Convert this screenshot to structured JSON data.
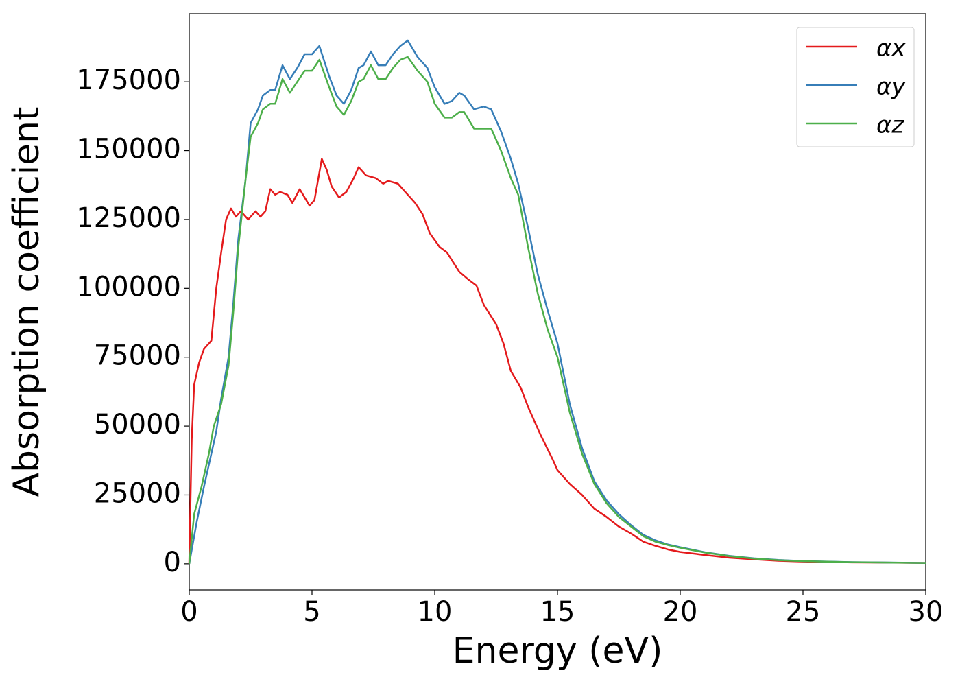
{
  "chart_data": {
    "type": "line",
    "xlabel": "Energy (eV)",
    "ylabel": "Absorption coefficient",
    "xlim": [
      0,
      30
    ],
    "ylim": [
      -9500,
      199700
    ],
    "xticks": [
      0,
      5,
      10,
      15,
      20,
      25,
      30
    ],
    "yticks": [
      0,
      25000,
      50000,
      75000,
      100000,
      125000,
      150000,
      175000
    ],
    "grid": false,
    "legend": "upper right",
    "series": [
      {
        "name": "αx",
        "color": "#e41a1c",
        "x": [
          0,
          0.1,
          0.2,
          0.4,
          0.6,
          0.9,
          1.1,
          1.3,
          1.5,
          1.7,
          1.9,
          2.1,
          2.4,
          2.7,
          2.9,
          3.1,
          3.3,
          3.5,
          3.7,
          4.0,
          4.2,
          4.5,
          4.9,
          5.1,
          5.4,
          5.6,
          5.8,
          6.1,
          6.4,
          6.7,
          6.9,
          7.2,
          7.6,
          7.9,
          8.1,
          8.5,
          8.9,
          9.2,
          9.5,
          9.8,
          10.2,
          10.5,
          11.0,
          11.4,
          11.7,
          12.0,
          12.5,
          12.8,
          13.1,
          13.5,
          13.8,
          14.3,
          14.8,
          15.0,
          15.5,
          16.0,
          16.5,
          17.0,
          17.5,
          18.0,
          18.5,
          19.0,
          19.5,
          20.0,
          21,
          22,
          23,
          24,
          25,
          27,
          30
        ],
        "values": [
          0,
          45000,
          65000,
          73000,
          78000,
          81000,
          100000,
          113000,
          125000,
          129000,
          126000,
          128000,
          125000,
          128000,
          126000,
          128000,
          136000,
          134000,
          135000,
          134000,
          131000,
          136000,
          130000,
          132000,
          147000,
          143000,
          137000,
          133000,
          135000,
          140000,
          144000,
          141000,
          140000,
          138000,
          139000,
          138000,
          134000,
          131000,
          127000,
          120000,
          115000,
          113000,
          106000,
          103000,
          101000,
          94000,
          87000,
          80000,
          70000,
          64000,
          57000,
          47000,
          38000,
          34000,
          29000,
          25000,
          20000,
          17000,
          13500,
          11000,
          8000,
          6500,
          5200,
          4300,
          3200,
          2200,
          1600,
          1100,
          800,
          500,
          300
        ]
      },
      {
        "name": "αy",
        "color": "#377eb8",
        "x": [
          0,
          0.3,
          0.6,
          0.9,
          1.1,
          1.3,
          1.6,
          1.8,
          2.0,
          2.3,
          2.5,
          2.8,
          3.0,
          3.3,
          3.5,
          3.8,
          4.1,
          4.4,
          4.7,
          5.0,
          5.3,
          5.7,
          6.0,
          6.3,
          6.6,
          6.9,
          7.1,
          7.4,
          7.7,
          8.0,
          8.3,
          8.6,
          8.9,
          9.3,
          9.7,
          10.0,
          10.4,
          10.7,
          11.0,
          11.2,
          11.6,
          12.0,
          12.3,
          12.7,
          13.1,
          13.4,
          13.8,
          14.2,
          14.6,
          15.0,
          15.5,
          16.0,
          16.5,
          17.0,
          17.5,
          18.0,
          18.5,
          19.0,
          19.5,
          20.0,
          21,
          22,
          23,
          24,
          25,
          27,
          30
        ],
        "values": [
          0,
          15000,
          28000,
          40000,
          48000,
          60000,
          75000,
          95000,
          118000,
          140000,
          160000,
          165000,
          170000,
          172000,
          172000,
          181000,
          176000,
          180000,
          185000,
          185000,
          188000,
          177000,
          170000,
          167000,
          172000,
          180000,
          181000,
          186000,
          181000,
          181000,
          185000,
          188000,
          190000,
          184000,
          180000,
          173000,
          167000,
          168000,
          171000,
          170000,
          165000,
          166000,
          165000,
          157000,
          147000,
          138000,
          122000,
          105000,
          92000,
          80000,
          58000,
          42000,
          30000,
          23000,
          18000,
          14000,
          10500,
          8500,
          7000,
          6000,
          4200,
          2900,
          2000,
          1400,
          1000,
          600,
          300
        ]
      },
      {
        "name": "αz",
        "color": "#4daf4a",
        "x": [
          0,
          0.2,
          0.5,
          0.8,
          1.0,
          1.3,
          1.6,
          1.8,
          2.0,
          2.3,
          2.5,
          2.8,
          3.0,
          3.3,
          3.5,
          3.8,
          4.1,
          4.4,
          4.7,
          5.0,
          5.3,
          5.7,
          6.0,
          6.3,
          6.6,
          6.9,
          7.1,
          7.4,
          7.7,
          8.0,
          8.3,
          8.6,
          8.9,
          9.3,
          9.7,
          10.0,
          10.4,
          10.7,
          11.0,
          11.2,
          11.6,
          12.0,
          12.3,
          12.7,
          13.1,
          13.4,
          13.8,
          14.2,
          14.6,
          15.0,
          15.5,
          16.0,
          16.5,
          17.0,
          17.5,
          18.0,
          18.5,
          19.0,
          19.5,
          20.0,
          21,
          22,
          23,
          24,
          25,
          27,
          30
        ],
        "values": [
          0,
          18000,
          28000,
          40000,
          50000,
          58000,
          72000,
          92000,
          115000,
          140000,
          155000,
          160000,
          165000,
          167000,
          167000,
          176000,
          171000,
          175000,
          179000,
          179000,
          183000,
          173000,
          166000,
          163000,
          168000,
          175000,
          176000,
          181000,
          176000,
          176000,
          180000,
          183000,
          184000,
          179000,
          175000,
          167000,
          162000,
          162000,
          164000,
          164000,
          158000,
          158000,
          158000,
          150000,
          140000,
          134000,
          115000,
          98000,
          85000,
          75000,
          55000,
          40000,
          29000,
          22000,
          17000,
          13500,
          10000,
          8000,
          6800,
          5800,
          4100,
          2800,
          1900,
          1300,
          950,
          550,
          300
        ]
      }
    ]
  }
}
